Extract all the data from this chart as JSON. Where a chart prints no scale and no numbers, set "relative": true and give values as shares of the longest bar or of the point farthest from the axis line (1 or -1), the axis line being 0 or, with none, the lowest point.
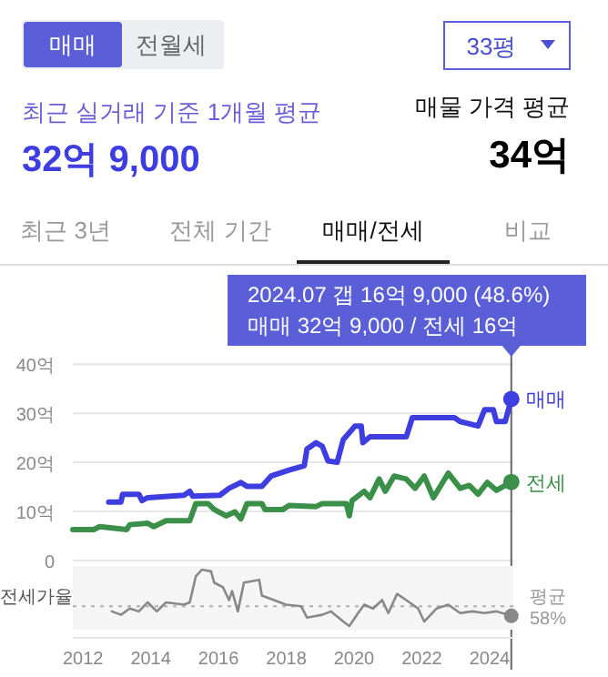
{
  "chart_data": [
    {
      "type": "other",
      "annotations": [
        "매매",
        "전월세",
        "33평",
        "최근 실거래 기준 1개월 평균",
        "32억 9,000",
        "매물 가격 평균",
        "34억",
        "최근 3년",
        "전체 기간",
        "매매/전세",
        "비교"
      ]
    },
    {
      "type": "line",
      "xlim": [
        2011.7,
        2024.7
      ],
      "ylim": [
        0,
        43
      ],
      "yticks": [
        0,
        {
          "value": 10,
          "label": "10억"
        },
        {
          "value": 20,
          "label": "20억"
        },
        {
          "value": 30,
          "label": "30억"
        },
        {
          "value": 40,
          "label": "40억"
        }
      ],
      "grid": "y",
      "tick_labels": "y",
      "series": [
        {
          "name": "매매",
          "color": "#3d3de0",
          "x": [
            2012.76,
            2013.12,
            2013.17,
            2013.65,
            2013.74,
            2013.91,
            2014.98,
            2015.15,
            2015.24,
            2016.04,
            2016.31,
            2016.66,
            2016.84,
            2017.28,
            2017.55,
            2018.08,
            2018.53,
            2018.61,
            2018.88,
            2019.06,
            2019.23,
            2019.5,
            2019.68,
            2020.03,
            2020.21,
            2020.26,
            2020.47,
            2021.54,
            2021.72,
            2022.96,
            2023.13,
            2023.66,
            2023.85,
            2024.11,
            2024.2,
            2024.46,
            2024.64
          ],
          "values": [
            11.9,
            11.9,
            13.5,
            13.5,
            12.2,
            12.8,
            13.3,
            14.1,
            13.1,
            13.3,
            14.7,
            15.9,
            15.1,
            15.1,
            17.2,
            18.4,
            19.3,
            22.7,
            24.0,
            23.3,
            20.3,
            20.0,
            24.6,
            27.4,
            27.4,
            24.0,
            25.2,
            25.2,
            29.1,
            29.1,
            28.3,
            27.4,
            30.7,
            30.7,
            28.3,
            28.3,
            32.9
          ]
        },
        {
          "name": "전세",
          "color": "#3a9048",
          "x": [
            2011.7,
            2012.32,
            2012.49,
            2013.29,
            2013.38,
            2013.91,
            2014.09,
            2014.45,
            2015.15,
            2015.33,
            2015.69,
            2015.87,
            2016.22,
            2016.48,
            2016.66,
            2016.84,
            2017.28,
            2017.37,
            2017.9,
            2018.08,
            2018.88,
            2019.06,
            2019.77,
            2019.86,
            2019.94,
            2020.3,
            2020.47,
            2020.74,
            2020.92,
            2021.18,
            2021.54,
            2021.8,
            2022.07,
            2022.34,
            2022.78,
            2023.13,
            2023.4,
            2023.66,
            2023.93,
            2024.2,
            2024.64
          ],
          "values": [
            6.3,
            6.3,
            6.9,
            6.3,
            7.3,
            7.6,
            6.9,
            8.1,
            8.1,
            11.6,
            11.6,
            10.4,
            9.1,
            9.9,
            8.5,
            11.6,
            11.6,
            10.4,
            10.4,
            11.2,
            11.0,
            11.6,
            11.6,
            9.1,
            12.2,
            14.1,
            12.8,
            16.6,
            14.1,
            17.2,
            16.6,
            14.7,
            17.2,
            12.8,
            17.8,
            14.7,
            15.3,
            13.5,
            15.9,
            14.3,
            16.0
          ]
        }
      ],
      "ref_lines": [
        {
          "axis": "x",
          "value": 2024.64,
          "color": "#666666"
        }
      ],
      "annotations": [
        {
          "text": "2024.07  갭 16억 9,000 (48.6%)\n매매 32억 9,000 / 전세 16억",
          "x": 2024.64,
          "y": 32.9
        }
      ]
    },
    {
      "type": "line",
      "relative": true,
      "ylabel": "전세가율",
      "xlim": [
        2011.7,
        2024.7
      ],
      "xticks": [
        2012,
        2014,
        2016,
        2018,
        2020,
        2022,
        2024
      ],
      "tick_labels": "x",
      "series": [
        {
          "color": "#888888",
          "x": [
            2012.85,
            2013.12,
            2013.38,
            2013.65,
            2013.91,
            2014.18,
            2014.45,
            2014.98,
            2015.15,
            2015.33,
            2015.51,
            2015.78,
            2015.87,
            2016.13,
            2016.31,
            2016.4,
            2016.57,
            2016.75,
            2017.2,
            2017.28,
            2017.64,
            2017.99,
            2018.44,
            2018.61,
            2019.06,
            2019.32,
            2019.68,
            2019.86,
            2020.12,
            2020.3,
            2020.56,
            2020.83,
            2021.01,
            2021.27,
            2021.54,
            2021.89,
            2022.07,
            2022.43,
            2022.78,
            2023.13,
            2023.49,
            2023.85,
            2024.2,
            2024.64
          ],
          "values": [
            0.26,
            0.2,
            0.31,
            0.26,
            0.42,
            0.26,
            0.42,
            0.38,
            0.42,
            0.88,
            1,
            0.97,
            0.77,
            0.69,
            0.46,
            0.62,
            0.26,
            0.77,
            0.82,
            0.54,
            0.46,
            0.38,
            0.35,
            0.15,
            0.2,
            0.26,
            0.08,
            0,
            0.23,
            0.38,
            0.31,
            0.46,
            0.23,
            0.57,
            0.46,
            0.31,
            0.08,
            0.31,
            0.38,
            0.23,
            0.26,
            0.23,
            0.26,
            0.18
          ]
        }
      ],
      "ref_lines": [
        {
          "axis": "y",
          "value": 0.35,
          "label": "평균\n58%",
          "line_style": "dotted",
          "color": "#bbbbbb"
        }
      ]
    }
  ]
}
